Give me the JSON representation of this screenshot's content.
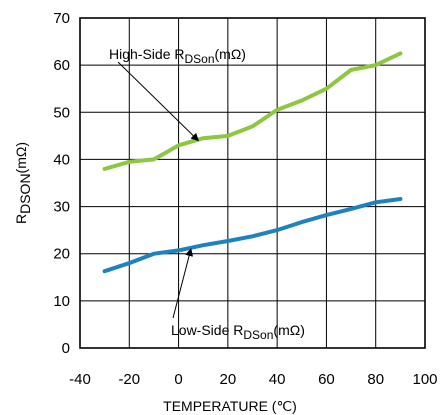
{
  "chart_data": {
    "type": "line",
    "xlabel": "TEMPERATURE (℃)",
    "ylabel": {
      "main": "R",
      "sub": "DSON",
      "unit": "(mΩ)"
    },
    "xlim": [
      -40,
      100
    ],
    "ylim": [
      0,
      70
    ],
    "xticks": [
      "-40",
      "-20",
      "0",
      "20",
      "40",
      "60",
      "80",
      "100"
    ],
    "yticks": [
      "0",
      "10",
      "20",
      "30",
      "40",
      "50",
      "60",
      "70"
    ],
    "grid": true,
    "series": [
      {
        "label": "high-side",
        "color": "#8dc63f",
        "x": [
          -30,
          -20,
          -10,
          -5,
          0,
          10,
          20,
          30,
          40,
          50,
          60,
          70,
          80,
          90
        ],
        "y": [
          38,
          39.5,
          40,
          41.5,
          43,
          44.5,
          45,
          47,
          50.5,
          52.5,
          55,
          59,
          60,
          62.5
        ]
      },
      {
        "label": "low-side",
        "color": "#1f82c0",
        "x": [
          -30,
          -20,
          -10,
          0,
          10,
          20,
          30,
          40,
          50,
          60,
          70,
          80,
          90
        ],
        "y": [
          16.3,
          18,
          20,
          20.7,
          21.8,
          22.7,
          23.7,
          25,
          26.7,
          28.2,
          29.5,
          30.9,
          31.6
        ]
      }
    ],
    "annotations": [
      {
        "main": "High-Side R",
        "sub": "DSon",
        "tail": "(mΩ)",
        "series": 0,
        "point_x": 8,
        "point_y": 44
      },
      {
        "main": "Low-Side R",
        "sub": "DSon",
        "tail": "(mΩ)",
        "series": 1,
        "point_x": 5,
        "point_y": 21
      }
    ]
  }
}
